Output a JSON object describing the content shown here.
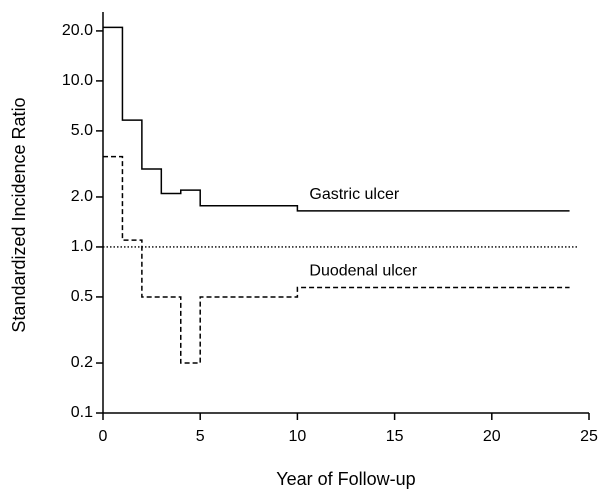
{
  "chart_data": {
    "type": "step",
    "x_label": "Year of Follow-up",
    "y_label": "Standardized Incidence Ratio",
    "log_y": true,
    "xlim": [
      0,
      25
    ],
    "xticks": [
      0,
      5,
      10,
      15,
      20,
      25
    ],
    "ylim": [
      0.1,
      26
    ],
    "yticks": [
      0.1,
      0.2,
      0.5,
      {
        "value": 1,
        "label": "1.0"
      },
      {
        "value": 2,
        "label": "2.0"
      },
      {
        "value": 5,
        "label": "5.0"
      },
      {
        "value": 10,
        "label": "10.0"
      },
      {
        "value": 20,
        "label": "20.0"
      }
    ],
    "reference_line": 1,
    "series": [
      {
        "name": "Gastric ulcer",
        "color": "#000000",
        "dash": "none",
        "x": [
          0,
          1,
          2,
          3,
          4,
          5,
          10,
          24
        ],
        "values": [
          21,
          5.8,
          2.95,
          2.1,
          2.2,
          1.77,
          1.65,
          1.65
        ]
      },
      {
        "name": "Duodenal ulcer",
        "color": "#000000",
        "dash": "5,3",
        "x": [
          0,
          1,
          2,
          4,
          5,
          10,
          24
        ],
        "values": [
          3.5,
          1.1,
          0.5,
          0.2,
          0.5,
          0.57,
          0.57
        ]
      }
    ]
  }
}
